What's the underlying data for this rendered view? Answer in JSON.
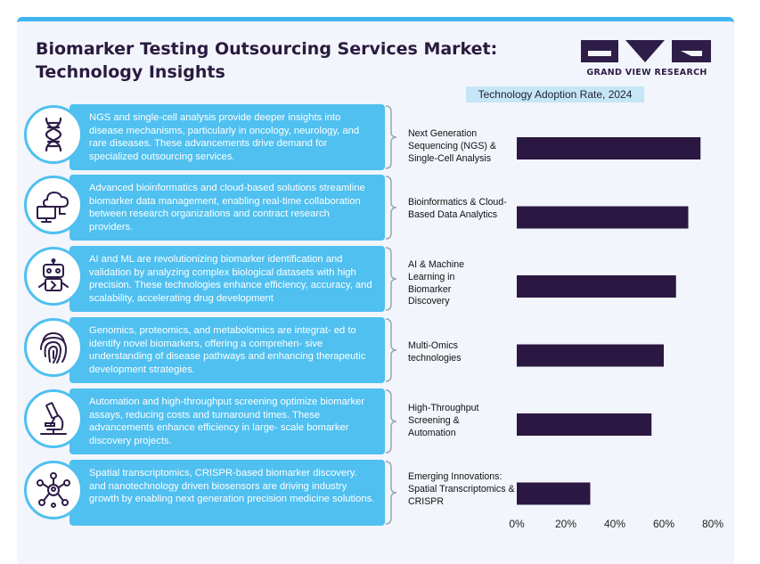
{
  "header": {
    "title_line1": "Biomarker Testing Outsourcing Services Market:",
    "title_line2": "Technology Insights",
    "logo_text": "GRAND VIEW RESEARCH"
  },
  "insights": [
    {
      "icon": "dna-icon",
      "text": "NGS and single-cell analysis provide deeper insights into disease mechanisms, particularly in oncology, neurology, and rare diseases. These advancements drive demand for specialized outsourcing services."
    },
    {
      "icon": "cloud-computer-icon",
      "text": "Advanced bioinformatics and cloud-based solutions streamline biomarker data management, enabling real-time collaboration between research organizations and contract research providers."
    },
    {
      "icon": "robot-icon",
      "text": "AI and ML are revolutionizing biomarker identification and validation by analyzing complex biological datasets with high precision. These technologies enhance efficiency, accuracy, and scalability, accelerating drug development"
    },
    {
      "icon": "fingerprint-icon",
      "text": "Genomics, proteomics, and metabolomics are integrat- ed to identify novel biomarkers, offering a comprehen- sive understanding of disease pathways and enhancing therapeutic development strategies."
    },
    {
      "icon": "microscope-icon",
      "text": "Automation and high-throughput screening optimize biomarker assays, reducing costs and turnaround times. These advancements enhance efficiency in large- scale bomarker discovery projects."
    },
    {
      "icon": "network-icon",
      "text": "Spatial transcriptomics, CRISPR-based biomarker discovery. and nanotechnology driven biosensors are driving industry growth by enabling next generation precision medicine solutions."
    }
  ],
  "chart_data": {
    "type": "bar",
    "orientation": "horizontal",
    "title": "Technology Adoption Rate, 2024",
    "categories": [
      "Next Generation Sequencing (NGS) & Single-Cell Analysis",
      "Bioinformatics & Cloud-Based Data Analytics",
      "AI & Machine Learning in Biomarker Discovery",
      "Multi-Omics technologies",
      "High-Throughput Screening & Automation",
      "Emerging Innovations: Spatial Transcriptomics & CRISPR"
    ],
    "values": [
      75,
      70,
      65,
      60,
      55,
      30
    ],
    "xlim": [
      0,
      80
    ],
    "xticks": [
      "0%",
      "20%",
      "40%",
      "60%",
      "80%"
    ],
    "bar_color": "#2b1842",
    "grid": false
  },
  "colors": {
    "accent": "#4fc0f0",
    "title": "#2a1a3f",
    "bar": "#2b1842",
    "chart_title_bg": "#c5e6f7"
  }
}
